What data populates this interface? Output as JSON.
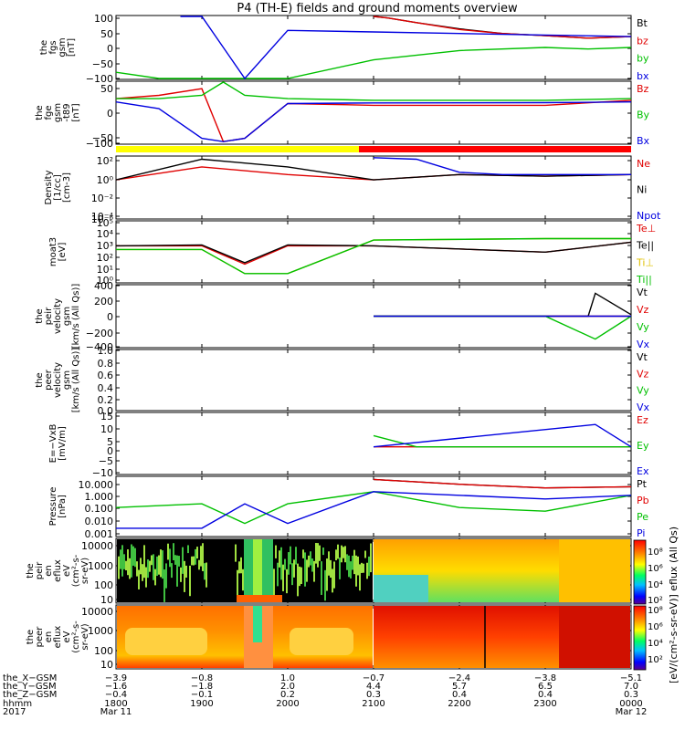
{
  "title": "P4 (TH-E) fields and ground moments overview",
  "panels": [
    {
      "id": "fgs",
      "ylabel": [
        "the",
        "fgs",
        "gsm",
        "[nT]"
      ],
      "ticks": [
        "100",
        "50",
        "0",
        "−50",
        "−100"
      ],
      "legend": [
        {
          "text": "Bt",
          "color": "#000000"
        },
        {
          "text": "bz",
          "color": "#e00000"
        },
        {
          "text": "by",
          "color": "#00c000"
        },
        {
          "text": "bx",
          "color": "#0000e0"
        }
      ]
    },
    {
      "id": "fge",
      "ylabel": [
        "the",
        "fge",
        "gsm",
        "-t89",
        "[nT]"
      ],
      "ticks": [
        "50",
        "0",
        "−50",
        "−100"
      ],
      "legend": [
        {
          "text": "Bz",
          "color": "#e00000"
        },
        {
          "text": "By",
          "color": "#00c000"
        },
        {
          "text": "Bx",
          "color": "#0000e0"
        }
      ]
    },
    {
      "id": "density",
      "ylabel": [
        "Density",
        "[1/cc]",
        "[cm-3]"
      ],
      "ticks": [
        "10²",
        "10⁰",
        "10⁻²",
        "10⁻⁴",
        "10⁻⁶"
      ],
      "legend": [
        {
          "text": "Ne",
          "color": "#e00000"
        },
        {
          "text": "Ni",
          "color": "#000000"
        },
        {
          "text": "Npot",
          "color": "#0000e0"
        }
      ]
    },
    {
      "id": "temp",
      "ylabel": [
        "moat3",
        "[eV]"
      ],
      "ticks": [
        "10⁵",
        "10⁴",
        "10³",
        "10²",
        "10¹",
        "10⁰"
      ],
      "legend": [
        {
          "text": "Te⊥",
          "color": "#e00000"
        },
        {
          "text": "Te||",
          "color": "#000000"
        },
        {
          "text": "Ti⊥",
          "color": "#e0c000"
        },
        {
          "text": "Ti||",
          "color": "#00c000"
        }
      ]
    },
    {
      "id": "peir_v",
      "ylabel": [
        "the",
        "peir",
        "velocity",
        "gsm",
        "[km/s (All Qs)]"
      ],
      "ticks": [
        "400",
        "200",
        "0",
        "−200",
        "−400"
      ],
      "legend": [
        {
          "text": "Vt",
          "color": "#000000"
        },
        {
          "text": "Vz",
          "color": "#e00000"
        },
        {
          "text": "Vy",
          "color": "#00c000"
        },
        {
          "text": "Vx",
          "color": "#0000e0"
        }
      ]
    },
    {
      "id": "peer_v",
      "ylabel": [
        "the",
        "peer",
        "velocity",
        "gsm",
        "[km/s (All Qs)]"
      ],
      "ticks": [
        "1.0",
        "0.8",
        "0.6",
        "0.4",
        "0.2",
        "0.0"
      ],
      "legend": [
        {
          "text": "Vt",
          "color": "#000000"
        },
        {
          "text": "Vz",
          "color": "#e00000"
        },
        {
          "text": "Vy",
          "color": "#00c000"
        },
        {
          "text": "Vx",
          "color": "#0000e0"
        }
      ]
    },
    {
      "id": "efield",
      "ylabel": [
        "E=−VxB",
        "[mV/m]"
      ],
      "ticks": [
        "15",
        "10",
        "5",
        "0",
        "−5",
        "−10"
      ],
      "legend": [
        {
          "text": "Ez",
          "color": "#e00000"
        },
        {
          "text": "Ey",
          "color": "#00c000"
        },
        {
          "text": "Ex",
          "color": "#0000e0"
        }
      ]
    },
    {
      "id": "pressure",
      "ylabel": [
        "Pressure",
        "[nPa]"
      ],
      "ticks": [
        "10.000",
        "1.000",
        "0.100",
        "0.010",
        "0.001"
      ],
      "legend": [
        {
          "text": "Pt",
          "color": "#000000"
        },
        {
          "text": "Pb",
          "color": "#e00000"
        },
        {
          "text": "Pe",
          "color": "#00c000"
        },
        {
          "text": "Pi",
          "color": "#0000e0"
        }
      ]
    },
    {
      "id": "peir_spec",
      "ylabel": [
        "the",
        "peir",
        "en",
        "eflux",
        "eV",
        "(cm²-s-",
        "sr-eV)"
      ],
      "ticks": [
        "10000",
        "1000",
        "100",
        "10"
      ]
    },
    {
      "id": "peer_spec",
      "ylabel": [
        "the",
        "peer",
        "en",
        "eflux",
        "eV",
        "(cm²-s-",
        "sr-eV)"
      ],
      "ticks": [
        "10000",
        "1000",
        "100",
        "10"
      ]
    }
  ],
  "colorbar": {
    "label": "[eV/(cm²-s-sr-eV)] eflux (All Qs)",
    "ticks_upper": [
      "10⁸",
      "10⁶",
      "10⁴",
      "10²"
    ],
    "ticks_lower": [
      "10⁸",
      "10⁶",
      "10⁴",
      "10²"
    ]
  },
  "status_bar": {
    "colors": [
      "#ffff00",
      "#ff0000"
    ]
  },
  "xaxis": {
    "row_labels": [
      "the_X−GSM",
      "the_Y−GSM",
      "the_Z−GSM",
      "hhmm",
      "2017"
    ],
    "columns": [
      {
        "x": "−3.9",
        "y": "−1.6",
        "z": "−0.4",
        "hhmm": "1800",
        "date": "Mar 11"
      },
      {
        "x": "−0.8",
        "y": "−1.8",
        "z": "−0.1",
        "hhmm": "1900",
        "date": ""
      },
      {
        "x": "1.0",
        "y": "2.0",
        "z": "0.2",
        "hhmm": "2000",
        "date": ""
      },
      {
        "x": "−0.7",
        "y": "4.4",
        "z": "0.3",
        "hhmm": "2100",
        "date": ""
      },
      {
        "x": "−2.4",
        "y": "5.7",
        "z": "0.4",
        "hhmm": "2200",
        "date": ""
      },
      {
        "x": "−3.8",
        "y": "6.5",
        "z": "0.4",
        "hhmm": "2300",
        "date": ""
      },
      {
        "x": "−5.1",
        "y": "7.0",
        "z": "0.3",
        "hhmm": "0000",
        "date": "Mar 12"
      }
    ]
  },
  "chart_data": {
    "type": "line",
    "title": "P4 (TH-E) fields and ground moments overview",
    "time_axis": {
      "label": "hhmm",
      "ticks": [
        "1800",
        "1900",
        "2000",
        "2100",
        "2200",
        "2300",
        "0000"
      ],
      "start": "2017 Mar 11 1800",
      "end": "2017 Mar 12 0000"
    },
    "panels": [
      {
        "name": "the fgs gsm [nT]",
        "ylim": [
          -100,
          100
        ],
        "series": [
          {
            "name": "Bt",
            "x": [
              "2100",
              "2110",
              "2130",
              "2200",
              "2230",
              "2300",
              "2330",
              "0000"
            ],
            "values": [
              100,
              95,
              80,
              60,
              45,
              38,
              30,
              35
            ]
          },
          {
            "name": "bz",
            "x": [
              "2100",
              "2110",
              "2130",
              "2200",
              "2230",
              "2300",
              "2330",
              "0000"
            ],
            "values": [
              100,
              95,
              80,
              58,
              45,
              38,
              30,
              35
            ]
          },
          {
            "name": "by",
            "x": [
              "1800",
              "1830",
              "2000",
              "2100",
              "2200",
              "2300",
              "2330",
              "0000"
            ],
            "values": [
              -80,
              -100,
              -100,
              -40,
              -10,
              0,
              -5,
              0
            ]
          },
          {
            "name": "bx",
            "x": [
              "1845",
              "1900",
              "1930",
              "2000",
              "2100",
              "2200",
              "2300",
              "0000"
            ],
            "values": [
              100,
              100,
              -100,
              55,
              50,
              45,
              40,
              35
            ]
          }
        ]
      },
      {
        "name": "the fge gsm -t89 [nT]",
        "ylim": [
          -125,
          60
        ],
        "series": [
          {
            "name": "Bz",
            "x": [
              "1800",
              "1830",
              "1900",
              "1915",
              "1930",
              "2000",
              "2100",
              "2300",
              "0000"
            ],
            "values": [
              10,
              20,
              40,
              -120,
              -110,
              -5,
              -10,
              -10,
              5
            ]
          },
          {
            "name": "By",
            "x": [
              "1800",
              "1830",
              "1900",
              "1915",
              "1930",
              "2000",
              "2100",
              "2300",
              "0000"
            ],
            "values": [
              10,
              10,
              20,
              60,
              20,
              10,
              5,
              5,
              10
            ]
          },
          {
            "name": "Bx",
            "x": [
              "1800",
              "1830",
              "1900",
              "1915",
              "1930",
              "2000",
              "2100",
              "2300",
              "0000"
            ],
            "values": [
              0,
              -20,
              -110,
              -120,
              -110,
              -5,
              -3,
              -2,
              0
            ]
          }
        ]
      },
      {
        "name": "Density [1/cc]",
        "scale": "log",
        "ylim": [
          1e-06,
          100.0
        ],
        "series": [
          {
            "name": "Ne",
            "x": [
              "1800",
              "1900",
              "2000",
              "2100",
              "2200",
              "2300",
              "0000"
            ],
            "values": [
              0.1,
              5,
              0.5,
              0.1,
              0.5,
              0.3,
              0.5
            ]
          },
          {
            "name": "Ni",
            "x": [
              "1800",
              "1900",
              "2000",
              "2100",
              "2200",
              "2300",
              "0000"
            ],
            "values": [
              0.1,
              50,
              5,
              0.1,
              0.5,
              0.3,
              0.5
            ]
          },
          {
            "name": "Npot",
            "x": [
              "2100",
              "2130",
              "2200",
              "2230",
              "2300",
              "0000"
            ],
            "values": [
              80,
              50,
              1,
              0.5,
              0.5,
              0.5
            ]
          }
        ]
      },
      {
        "name": "moat3 [eV]",
        "scale": "log",
        "ylim": [
          1,
          100000.0
        ],
        "series": [
          {
            "name": "Te⊥",
            "x": [
              "1800",
              "1900",
              "1930",
              "2000",
              "2100",
              "2300",
              "0000"
            ],
            "values": [
              1000,
              1000,
              30,
              1000,
              1000,
              300,
              2000
            ]
          },
          {
            "name": "Te||",
            "x": [
              "1800",
              "1900",
              "1930",
              "2000",
              "2100",
              "2300",
              "0000"
            ],
            "values": [
              1000,
              1200,
              40,
              1200,
              1000,
              300,
              2000
            ]
          },
          {
            "name": "Ti⊥",
            "x": [
              "1800",
              "1900",
              "1930",
              "2000",
              "2100",
              "2300",
              "0000"
            ],
            "values": [
              500,
              500,
              5,
              5,
              3000,
              4000,
              4000
            ]
          },
          {
            "name": "Ti||",
            "x": [
              "1800",
              "1900",
              "1930",
              "2000",
              "2100",
              "2300",
              "0000"
            ],
            "values": [
              500,
              500,
              5,
              5,
              3000,
              4000,
              4000
            ]
          }
        ]
      },
      {
        "name": "the peir velocity gsm [km/s (All Qs)]",
        "ylim": [
          -400,
          400
        ],
        "series": [
          {
            "name": "Vt",
            "x": [
              "2100",
              "2300",
              "2330",
              "2335",
              "0000"
            ],
            "values": [
              0,
              0,
              0,
              300,
              20
            ]
          },
          {
            "name": "Vz",
            "x": [
              "2100",
              "2300",
              "0000"
            ],
            "values": [
              0,
              0,
              0
            ]
          },
          {
            "name": "Vy",
            "x": [
              "2100",
              "2300",
              "2335",
              "0000"
            ],
            "values": [
              0,
              0,
              -300,
              0
            ]
          },
          {
            "name": "Vx",
            "x": [
              "2100",
              "2300",
              "0000"
            ],
            "values": [
              0,
              0,
              0
            ]
          }
        ]
      },
      {
        "name": "the peer velocity gsm [km/s (All Qs)]",
        "ylim": [
          0,
          1
        ],
        "series": []
      },
      {
        "name": "E=−VxB [mV/m]",
        "ylim": [
          -12,
          15
        ],
        "series": [
          {
            "name": "Ez",
            "x": [
              "2100",
              "2300",
              "0000"
            ],
            "values": [
              0,
              0,
              0
            ]
          },
          {
            "name": "Ey",
            "x": [
              "2100",
              "2130",
              "2300",
              "0000"
            ],
            "values": [
              5,
              0,
              0,
              0
            ]
          },
          {
            "name": "Ex",
            "x": [
              "2100",
              "2335",
              "0000"
            ],
            "values": [
              0,
              10,
              0
            ]
          }
        ]
      },
      {
        "name": "Pressure [nPa]",
        "scale": "log",
        "ylim": [
          0.0005,
          30
        ],
        "series": [
          {
            "name": "Pt",
            "x": [
              "2100",
              "2200",
              "2300",
              "0000"
            ],
            "values": [
              20,
              8,
              4,
              5
            ]
          },
          {
            "name": "Pb",
            "x": [
              "2100",
              "2200",
              "2300",
              "0000"
            ],
            "values": [
              20,
              8,
              4,
              5
            ]
          },
          {
            "name": "Pe",
            "x": [
              "1800",
              "1900",
              "1930",
              "2000",
              "2100",
              "2200",
              "2300",
              "0000"
            ],
            "values": [
              0.1,
              0.2,
              0.005,
              0.2,
              2,
              0.1,
              0.05,
              1
            ]
          },
          {
            "name": "Pi",
            "x": [
              "1800",
              "1900",
              "1930",
              "2000",
              "2100",
              "2200",
              "2300",
              "0000"
            ],
            "values": [
              0.002,
              0.002,
              0.2,
              0.005,
              2,
              1,
              0.5,
              1
            ]
          }
        ]
      },
      {
        "name": "the peir en eflux",
        "type": "heatmap",
        "scale": "log",
        "ylim": [
          10,
          20000
        ]
      },
      {
        "name": "the peer en eflux",
        "type": "heatmap",
        "scale": "log",
        "ylim": [
          10,
          20000
        ]
      }
    ]
  }
}
